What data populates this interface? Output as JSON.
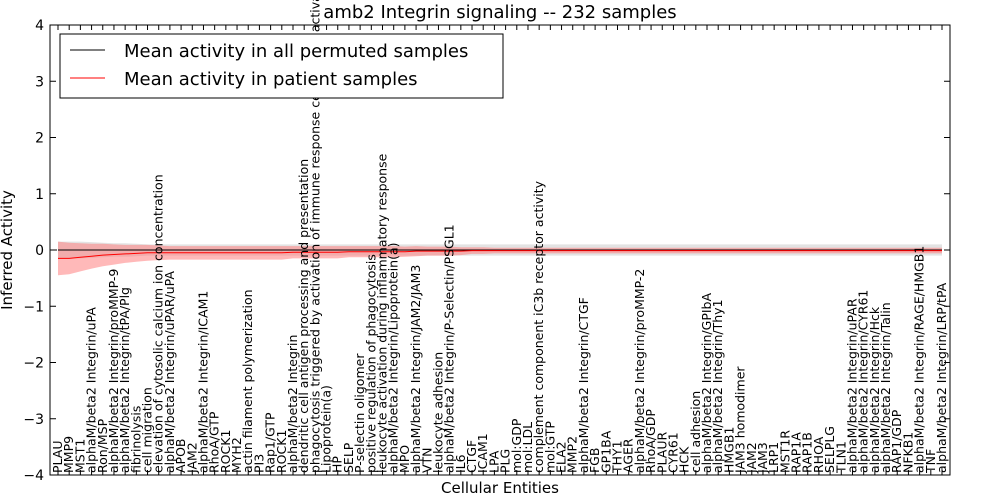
{
  "chart_data": {
    "type": "line",
    "title": "amb2 Integrin signaling -- 232 samples",
    "xlabel": "Cellular Entities",
    "ylabel": "Inferred Activity",
    "ylim": [
      -4,
      4
    ],
    "yticks": [
      4,
      3,
      2,
      1,
      0,
      -1,
      -2,
      -3,
      -4
    ],
    "grid": false,
    "legend_position": "top-left",
    "categories": [
      "PLAU",
      "MMP9",
      "MST1",
      "alphaM/beta2 Integrin/uPA",
      "Ron/MSP",
      "alphaM/beta2 Integrin/proMMP-9",
      "alphaM/beta2 Integrin/tPA/Plg",
      "fibrinolysis",
      "cell migration",
      "elevation of cytosolic calcium ion concentration",
      "alphaM/beta2 Integrin/uPAR/uPA",
      "APOB",
      "JAM2",
      "alphaM/beta2 Integrin/ICAM1",
      "RhoA/GTP",
      "ROCK1",
      "MYH2",
      "actin filament polymerization",
      "PI3",
      "Rap1/GTP",
      "ROCK1",
      "alphaM/beta2 Integrin",
      "dendritic cell antigen processing and presentation",
      "phagocytosis triggered by activation of immune response cell surface activating receptor",
      "Lipoprotein(a)",
      "HP",
      "SELP",
      "P-selectin oligomer",
      "positive regulation of phagocytosis",
      "leukocyte activation during inflammatory response",
      "alphaM/beta2 Integrin/Lipoprotein(a)",
      "MPO",
      "alphaM/beta2 Integrin/JAM2/JAM3",
      "VTN",
      "leukocyte adhesion",
      "alphaM/beta2 Integrin/P-Selectin/PSGL1",
      "IL6",
      "CTGF",
      "ICAM1",
      "LPA",
      "PLG",
      "mol:GDP",
      "mol:LDL",
      "complement component iC3b receptor activity",
      "mol:GTP",
      "ELA2",
      "MMP2",
      "alphaM/beta2 Integrin/CTGF",
      "FGB",
      "GP1BA",
      "THY1",
      "AGER",
      "alphaM/beta2 Integrin/proMMP-2",
      "RhoA/GDP",
      "PLAUR",
      "CYR61",
      "HCK",
      "cell adhesion",
      "alphaM/beta2 Integrin/GPIbA",
      "alphaM/beta2 Integrin/Thy1",
      "HMGB1",
      "JAM3 homodimer",
      "JAM2",
      "JAM3",
      "LRP1",
      "MST1R",
      "RAP1A",
      "RAP1B",
      "RHOA",
      "SELPLG",
      "TLN1",
      "alphaM/beta2 Integrin/uPAR",
      "alphaM/beta2 Integrin/CYR61",
      "alphaM/beta2 Integrin/Hck",
      "alphaM/beta2 Integrin/Talin",
      "RAP1/GDP",
      "NFKB1",
      "alphaM/beta2 Integrin/RAGE/HMGB1",
      "TNF",
      "alphaM/beta2 Integrin/LRP/tPA"
    ],
    "series": [
      {
        "name": "Mean activity in all permuted samples",
        "color": "#000000",
        "band_color": "#c8c8c8",
        "values": [
          0,
          0,
          0,
          0,
          0,
          0,
          0,
          0,
          0,
          0,
          0,
          0,
          0,
          0,
          0,
          0,
          0,
          0,
          0,
          0,
          0,
          0,
          0,
          0,
          0,
          0,
          0,
          0,
          0,
          0,
          0,
          0,
          0,
          0,
          0,
          0,
          0,
          0,
          0,
          0,
          0,
          0,
          0,
          0,
          0,
          0,
          0,
          0,
          0,
          0,
          0,
          0,
          0,
          0,
          0,
          0,
          0,
          0,
          0,
          0,
          0,
          0,
          0,
          0,
          0,
          0,
          0,
          0,
          0,
          0,
          0,
          0,
          0,
          0,
          0,
          0,
          0,
          0,
          0,
          0
        ],
        "band": [
          0.15,
          0.15,
          0.15,
          0.14,
          0.13,
          0.12,
          0.12,
          0.11,
          0.1,
          0.1,
          0.1,
          0.1,
          0.1,
          0.1,
          0.1,
          0.1,
          0.1,
          0.1,
          0.1,
          0.1,
          0.1,
          0.1,
          0.1,
          0.1,
          0.1,
          0.1,
          0.1,
          0.1,
          0.1,
          0.1,
          0.1,
          0.1,
          0.1,
          0.1,
          0.1,
          0.1,
          0.1,
          0.1,
          0.1,
          0.1,
          0.1,
          0.1,
          0.1,
          0.1,
          0.1,
          0.1,
          0.1,
          0.1,
          0.1,
          0.1,
          0.1,
          0.1,
          0.1,
          0.1,
          0.1,
          0.1,
          0.1,
          0.1,
          0.1,
          0.1,
          0.1,
          0.1,
          0.1,
          0.1,
          0.1,
          0.1,
          0.1,
          0.1,
          0.1,
          0.1,
          0.1,
          0.1,
          0.1,
          0.1,
          0.1,
          0.1,
          0.1,
          0.1,
          0.1,
          0.1
        ]
      },
      {
        "name": "Mean activity in patient samples",
        "color": "#ff0000",
        "band_color": "#ff8080",
        "values": [
          -0.15,
          -0.15,
          -0.13,
          -0.11,
          -0.09,
          -0.08,
          -0.07,
          -0.06,
          -0.05,
          -0.05,
          -0.05,
          -0.05,
          -0.05,
          -0.05,
          -0.05,
          -0.05,
          -0.05,
          -0.05,
          -0.05,
          -0.05,
          -0.05,
          -0.04,
          -0.04,
          -0.04,
          -0.04,
          -0.04,
          -0.03,
          -0.03,
          -0.03,
          -0.03,
          -0.03,
          -0.03,
          -0.02,
          -0.02,
          -0.02,
          -0.02,
          -0.02,
          -0.01,
          -0.01,
          -0.01,
          -0.01,
          -0.01,
          -0.01,
          -0.01,
          -0.01,
          -0.01,
          -0.01,
          -0.01,
          -0.01,
          -0.01,
          -0.01,
          -0.01,
          -0.01,
          -0.01,
          -0.01,
          -0.01,
          -0.01,
          -0.01,
          -0.01,
          -0.01,
          -0.01,
          -0.01,
          -0.01,
          -0.01,
          -0.01,
          -0.01,
          -0.01,
          -0.01,
          -0.01,
          -0.01,
          -0.01,
          -0.01,
          -0.01,
          -0.01,
          -0.01,
          -0.01,
          -0.01,
          -0.01,
          -0.01,
          -0.01
        ],
        "band": [
          0.3,
          0.28,
          0.25,
          0.22,
          0.2,
          0.18,
          0.16,
          0.15,
          0.14,
          0.13,
          0.12,
          0.12,
          0.12,
          0.12,
          0.12,
          0.12,
          0.12,
          0.12,
          0.12,
          0.12,
          0.12,
          0.11,
          0.11,
          0.11,
          0.11,
          0.11,
          0.1,
          0.1,
          0.1,
          0.1,
          0.1,
          0.09,
          0.09,
          0.08,
          0.08,
          0.08,
          0.07,
          0.06,
          0.06,
          0.05,
          0.05,
          0.05,
          0.05,
          0.05,
          0.05,
          0.05,
          0.05,
          0.05,
          0.05,
          0.05,
          0.05,
          0.05,
          0.05,
          0.05,
          0.05,
          0.05,
          0.05,
          0.05,
          0.05,
          0.05,
          0.05,
          0.05,
          0.05,
          0.05,
          0.05,
          0.05,
          0.05,
          0.05,
          0.05,
          0.05,
          0.05,
          0.05,
          0.05,
          0.05,
          0.05,
          0.05,
          0.05,
          0.05,
          0.05,
          0.05
        ]
      }
    ]
  }
}
